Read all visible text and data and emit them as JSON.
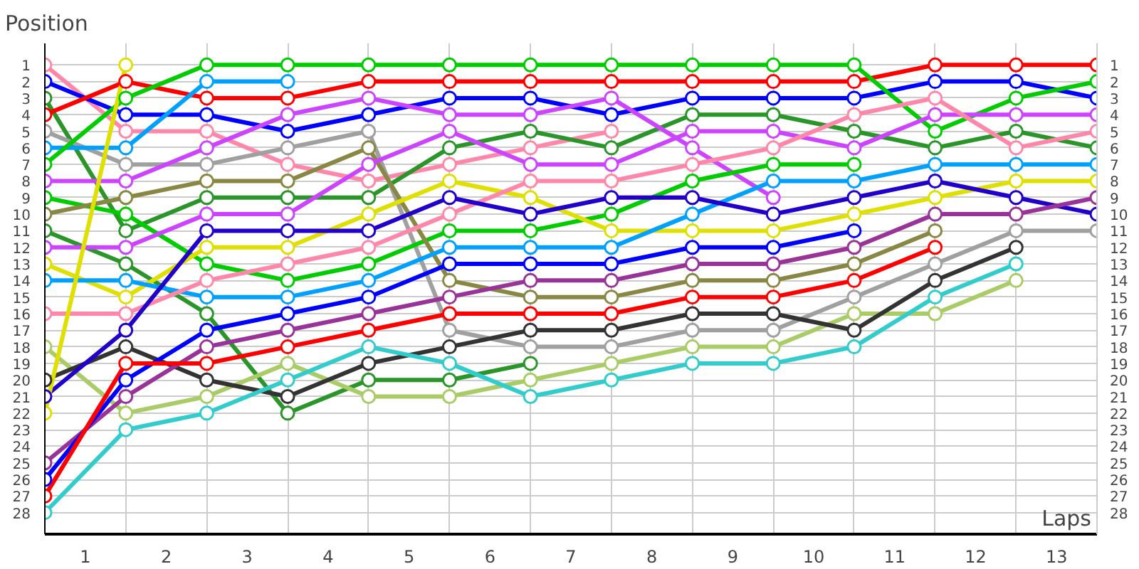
{
  "chart_data": {
    "type": "line",
    "xlabel": "Laps",
    "ylabel": "Position",
    "marker": "circle",
    "line_style": "solid",
    "grid": true,
    "x": [
      0,
      1,
      2,
      3,
      4,
      5,
      6,
      7,
      8,
      9,
      10,
      11,
      12,
      13
    ],
    "xlim": [
      0,
      13
    ],
    "ylim": [
      29.3,
      -0.3
    ],
    "y2lim": [
      29.3,
      -0.3
    ],
    "xticks": [
      {
        "value": 0,
        "label": null
      },
      {
        "value": 0.5,
        "label": "1"
      },
      {
        "value": 1,
        "label": null
      },
      {
        "value": 1.5,
        "label": "2"
      },
      {
        "value": 2,
        "label": null
      },
      {
        "value": 2.5,
        "label": "3"
      },
      {
        "value": 3,
        "label": null
      },
      {
        "value": 3.5,
        "label": "4"
      },
      {
        "value": 4,
        "label": null
      },
      {
        "value": 4.5,
        "label": "5"
      },
      {
        "value": 5,
        "label": null
      },
      {
        "value": 5.5,
        "label": "6"
      },
      {
        "value": 6,
        "label": null
      },
      {
        "value": 6.5,
        "label": "7"
      },
      {
        "value": 7,
        "label": null
      },
      {
        "value": 7.5,
        "label": "8"
      },
      {
        "value": 8,
        "label": null
      },
      {
        "value": 8.5,
        "label": "9"
      },
      {
        "value": 9,
        "label": null
      },
      {
        "value": 9.5,
        "label": "10"
      },
      {
        "value": 10,
        "label": null
      },
      {
        "value": 10.5,
        "label": "11"
      },
      {
        "value": 11,
        "label": null
      },
      {
        "value": 11.5,
        "label": "12"
      },
      {
        "value": 12,
        "label": null
      },
      {
        "value": 12.5,
        "label": "13"
      },
      {
        "value": 13,
        "label": null
      }
    ],
    "yticks": [
      1,
      2,
      3,
      4,
      5,
      6,
      7,
      8,
      9,
      10,
      11,
      12,
      13,
      14,
      15,
      16,
      17,
      18,
      19,
      20,
      21,
      22,
      23,
      24,
      25,
      26,
      27,
      28
    ],
    "y2ticks": [
      1,
      2,
      3,
      4,
      5,
      6,
      7,
      8,
      9,
      10,
      11,
      12,
      13,
      14,
      15,
      16,
      17,
      18,
      19,
      20,
      21,
      22,
      23,
      24,
      25,
      26,
      27,
      28
    ],
    "series": [
      {
        "color": "#ff88aa",
        "values": [
          1,
          5,
          5,
          7,
          8,
          7,
          6,
          5,
          null,
          null,
          null,
          null,
          null,
          null
        ]
      },
      {
        "color": "#0000ff",
        "values": [
          2,
          4,
          4,
          5,
          4,
          3,
          3,
          4,
          3,
          3,
          3,
          2,
          2,
          3
        ]
      },
      {
        "color": "#2a962a",
        "values": [
          3,
          11,
          9,
          9,
          9,
          6,
          5,
          6,
          4,
          4,
          5,
          6,
          5,
          6
        ]
      },
      {
        "color": "#ff0000",
        "values": [
          4,
          2,
          3,
          3,
          2,
          2,
          2,
          2,
          2,
          2,
          2,
          1,
          1,
          1
        ]
      },
      {
        "color": "#a0a0a0",
        "values": [
          5,
          7,
          7,
          6,
          5,
          17,
          18,
          18,
          17,
          17,
          15,
          13,
          11,
          11
        ]
      },
      {
        "color": "#00a0ff",
        "values": [
          6,
          6,
          2,
          2,
          null,
          null,
          null,
          null,
          null,
          null,
          null,
          null,
          null,
          null
        ]
      },
      {
        "color": "#00cc00",
        "values": [
          7,
          3,
          1,
          1,
          1,
          1,
          1,
          1,
          1,
          1,
          1,
          5,
          3,
          2
        ]
      },
      {
        "color": "#cc44ff",
        "values": [
          8,
          8,
          6,
          4,
          3,
          4,
          4,
          3,
          6,
          9,
          null,
          null,
          null,
          null
        ]
      },
      {
        "color": "#00cc00",
        "values": [
          9,
          10,
          13,
          14,
          13,
          11,
          11,
          10,
          8,
          7,
          7,
          null,
          null,
          null
        ]
      },
      {
        "color": "#888844",
        "values": [
          10,
          9,
          8,
          8,
          6,
          14,
          15,
          15,
          14,
          14,
          13,
          11,
          null,
          null
        ]
      },
      {
        "color": "#2a962a",
        "values": [
          11,
          13,
          16,
          22,
          20,
          20,
          19,
          null,
          null,
          null,
          null,
          null,
          null,
          null
        ]
      },
      {
        "color": "#cc44ff",
        "values": [
          12,
          12,
          10,
          10,
          7,
          5,
          7,
          7,
          5,
          5,
          6,
          4,
          4,
          4
        ]
      },
      {
        "color": "#e0e000",
        "values": [
          13,
          15,
          12,
          12,
          10,
          8,
          9,
          11,
          11,
          11,
          10,
          9,
          8,
          8
        ]
      },
      {
        "color": "#00a0ff",
        "values": [
          14,
          14,
          15,
          15,
          14,
          12,
          12,
          12,
          10,
          8,
          8,
          7,
          7,
          7
        ]
      },
      {
        "color": "#ff88aa",
        "values": [
          16,
          16,
          14,
          13,
          12,
          10,
          8,
          8,
          7,
          6,
          4,
          3,
          6,
          5
        ]
      },
      {
        "color": "#aacc66",
        "values": [
          18,
          22,
          21,
          19,
          21,
          21,
          20,
          19,
          18,
          18,
          16,
          16,
          14,
          null
        ]
      },
      {
        "color": "#333333",
        "values": [
          20,
          18,
          20,
          21,
          19,
          18,
          17,
          17,
          16,
          16,
          17,
          14,
          12,
          null
        ]
      },
      {
        "color": "#2200cc",
        "values": [
          21,
          17,
          11,
          11,
          11,
          9,
          10,
          9,
          9,
          10,
          9,
          8,
          9,
          10
        ]
      },
      {
        "color": "#e0e000",
        "values": [
          22,
          1,
          null,
          null,
          null,
          null,
          null,
          null,
          null,
          null,
          null,
          null,
          null,
          null
        ]
      },
      {
        "color": "#993399",
        "values": [
          25,
          21,
          18,
          17,
          16,
          15,
          14,
          14,
          13,
          13,
          12,
          10,
          10,
          9
        ]
      },
      {
        "color": "#0000ff",
        "values": [
          26,
          20,
          17,
          16,
          15,
          13,
          13,
          13,
          12,
          12,
          11,
          null,
          null,
          null
        ]
      },
      {
        "color": "#ff0000",
        "values": [
          27,
          19,
          19,
          18,
          17,
          16,
          16,
          16,
          15,
          15,
          14,
          12,
          null,
          null
        ]
      },
      {
        "color": "#33cccc",
        "values": [
          28,
          23,
          22,
          20,
          18,
          19,
          21,
          20,
          19,
          19,
          18,
          15,
          13,
          null
        ]
      }
    ]
  }
}
